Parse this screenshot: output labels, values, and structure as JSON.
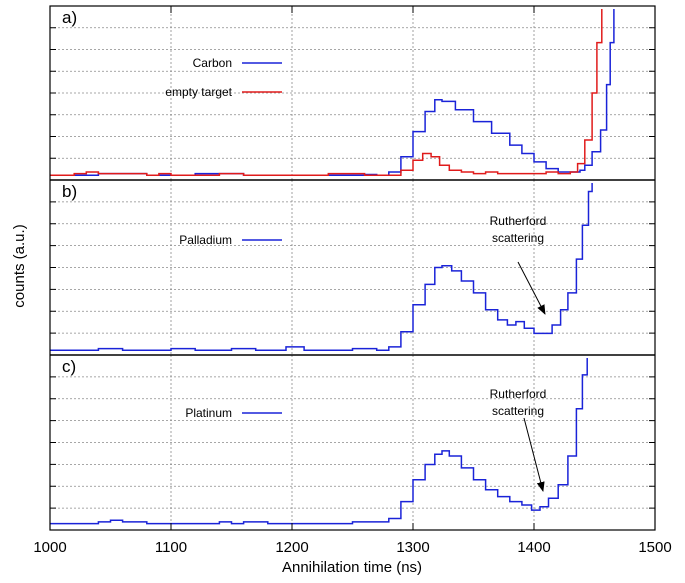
{
  "chart_data": {
    "type": "line",
    "xlabel": "Annihilation time (ns)",
    "ylabel": "counts (a.u.)",
    "xlim": [
      1000,
      1500
    ],
    "x_ticks": [
      "1000",
      "1100",
      "1200",
      "1300",
      "1400",
      "1500"
    ],
    "grid": true,
    "colors": {
      "Carbon": "#1a23d8",
      "empty target": "#e01b1b",
      "Palladium": "#1a23d8",
      "Platinum": "#1a23d8"
    },
    "panels": [
      {
        "label": "a)",
        "ylim": [
          0,
          100
        ],
        "legend": [
          "Carbon",
          "empty target"
        ],
        "annotation": null,
        "series": [
          {
            "name": "Carbon",
            "points": [
              [
                1000,
                1
              ],
              [
                1040,
                2
              ],
              [
                1080,
                1
              ],
              [
                1120,
                2
              ],
              [
                1160,
                1
              ],
              [
                1200,
                1
              ],
              [
                1240,
                1
              ],
              [
                1260,
                1.5
              ],
              [
                1270,
                1
              ],
              [
                1280,
                3
              ],
              [
                1290,
                12
              ],
              [
                1300,
                27
              ],
              [
                1310,
                39
              ],
              [
                1318,
                46
              ],
              [
                1324,
                45
              ],
              [
                1335,
                40
              ],
              [
                1350,
                33
              ],
              [
                1365,
                26
              ],
              [
                1380,
                19
              ],
              [
                1390,
                14
              ],
              [
                1400,
                9
              ],
              [
                1410,
                5
              ],
              [
                1420,
                3
              ],
              [
                1430,
                3
              ],
              [
                1438,
                4
              ],
              [
                1442,
                7
              ],
              [
                1448,
                15
              ],
              [
                1455,
                28
              ],
              [
                1460,
                55
              ],
              [
                1463,
                80
              ],
              [
                1466,
                100
              ]
            ]
          },
          {
            "name": "empty target",
            "points": [
              [
                1000,
                1
              ],
              [
                1020,
                2
              ],
              [
                1030,
                3
              ],
              [
                1040,
                2
              ],
              [
                1080,
                1
              ],
              [
                1090,
                2
              ],
              [
                1100,
                1
              ],
              [
                1140,
                2
              ],
              [
                1160,
                1
              ],
              [
                1200,
                1
              ],
              [
                1230,
                2
              ],
              [
                1260,
                1
              ],
              [
                1280,
                1
              ],
              [
                1290,
                4
              ],
              [
                1300,
                10
              ],
              [
                1308,
                14
              ],
              [
                1315,
                12
              ],
              [
                1322,
                7
              ],
              [
                1330,
                4
              ],
              [
                1340,
                3
              ],
              [
                1350,
                2
              ],
              [
                1360,
                3
              ],
              [
                1370,
                2
              ],
              [
                1380,
                2
              ],
              [
                1390,
                2
              ],
              [
                1400,
                2
              ],
              [
                1410,
                3
              ],
              [
                1420,
                2
              ],
              [
                1430,
                3
              ],
              [
                1436,
                8
              ],
              [
                1442,
                22
              ],
              [
                1448,
                50
              ],
              [
                1452,
                80
              ],
              [
                1456,
                100
              ]
            ]
          }
        ]
      },
      {
        "label": "b)",
        "ylim": [
          0,
          100
        ],
        "legend": [
          "Palladium"
        ],
        "annotation": {
          "text_line1": "Rutherford",
          "text_line2": "scattering"
        },
        "series": [
          {
            "name": "Palladium",
            "points": [
              [
                1000,
                1
              ],
              [
                1020,
                1
              ],
              [
                1040,
                2
              ],
              [
                1060,
                1
              ],
              [
                1080,
                1
              ],
              [
                1100,
                2
              ],
              [
                1120,
                1
              ],
              [
                1150,
                2
              ],
              [
                1170,
                1
              ],
              [
                1195,
                3
              ],
              [
                1210,
                1
              ],
              [
                1230,
                1
              ],
              [
                1250,
                2
              ],
              [
                1270,
                1
              ],
              [
                1280,
                3
              ],
              [
                1290,
                12
              ],
              [
                1300,
                28
              ],
              [
                1310,
                40
              ],
              [
                1318,
                50
              ],
              [
                1324,
                51
              ],
              [
                1332,
                48
              ],
              [
                1340,
                42
              ],
              [
                1350,
                35
              ],
              [
                1360,
                25
              ],
              [
                1370,
                19
              ],
              [
                1378,
                16
              ],
              [
                1385,
                18
              ],
              [
                1392,
                14
              ],
              [
                1400,
                11
              ],
              [
                1408,
                11
              ],
              [
                1415,
                16
              ],
              [
                1422,
                25
              ],
              [
                1428,
                35
              ],
              [
                1435,
                55
              ],
              [
                1440,
                75
              ],
              [
                1445,
                95
              ],
              [
                1448,
                100
              ]
            ]
          }
        ]
      },
      {
        "label": "c)",
        "ylim": [
          0,
          100
        ],
        "legend": [
          "Platinum"
        ],
        "annotation": {
          "text_line1": "Rutherford",
          "text_line2": "scattering"
        },
        "series": [
          {
            "name": "Platinum",
            "points": [
              [
                1000,
                2
              ],
              [
                1020,
                2
              ],
              [
                1040,
                3
              ],
              [
                1050,
                4
              ],
              [
                1060,
                3
              ],
              [
                1080,
                2
              ],
              [
                1100,
                2
              ],
              [
                1120,
                2
              ],
              [
                1140,
                3
              ],
              [
                1150,
                2
              ],
              [
                1160,
                3
              ],
              [
                1180,
                2
              ],
              [
                1200,
                2
              ],
              [
                1220,
                2
              ],
              [
                1250,
                3
              ],
              [
                1270,
                3
              ],
              [
                1280,
                5
              ],
              [
                1290,
                15
              ],
              [
                1300,
                28
              ],
              [
                1310,
                37
              ],
              [
                1318,
                43
              ],
              [
                1324,
                45
              ],
              [
                1330,
                42
              ],
              [
                1340,
                35
              ],
              [
                1350,
                28
              ],
              [
                1360,
                22
              ],
              [
                1370,
                18
              ],
              [
                1380,
                15
              ],
              [
                1390,
                13
              ],
              [
                1398,
                10
              ],
              [
                1405,
                12
              ],
              [
                1412,
                17
              ],
              [
                1420,
                25
              ],
              [
                1428,
                42
              ],
              [
                1435,
                70
              ],
              [
                1440,
                90
              ],
              [
                1444,
                100
              ]
            ]
          }
        ]
      }
    ]
  }
}
